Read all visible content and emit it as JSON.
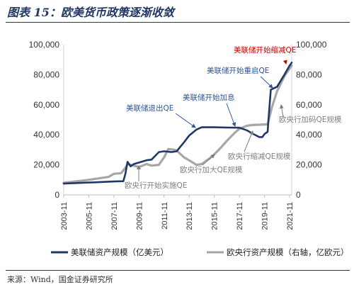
{
  "header": {
    "title": "图表 15：欧美货币政策逐渐收敛"
  },
  "footer": {
    "source": "来源：Wind，国金证券研究所"
  },
  "colors": {
    "fed": "#203864",
    "ecb": "#a6a6a6",
    "fed_annotation": "#2f5597",
    "highlight": "#c00000",
    "ecb_annotation": "#7f7f7f"
  },
  "chart_data": {
    "type": "line",
    "title": "",
    "xlabel": "",
    "ylabel": "",
    "ylabel_right": "",
    "x_range": [
      "2003-11",
      "2022-01"
    ],
    "x_ticks": [
      "2003-11",
      "2005-11",
      "2007-11",
      "2009-11",
      "2011-11",
      "2013-11",
      "2015-11",
      "2017-11",
      "2019-11",
      "2021-11"
    ],
    "ylim": [
      0,
      100000
    ],
    "ylim_right": [
      0,
      100000
    ],
    "y_ticks": [
      "0",
      "20,000",
      "40,000",
      "60,000",
      "80,000",
      "100,000"
    ],
    "y_ticks_right": [
      "0",
      "20,000",
      "40,000",
      "60,000",
      "80,000",
      "100,000"
    ],
    "grid": false,
    "legend_position": "bottom",
    "series": [
      {
        "name": "美联储资产规模（亿美元）",
        "axis": "left",
        "points": [
          [
            "2003-11",
            7500
          ],
          [
            "2005-11",
            8200
          ],
          [
            "2007-11",
            8900
          ],
          [
            "2008-08",
            9100
          ],
          [
            "2008-10",
            14000
          ],
          [
            "2008-12",
            22000
          ],
          [
            "2009-03",
            19000
          ],
          [
            "2009-06",
            20500
          ],
          [
            "2009-11",
            21500
          ],
          [
            "2010-06",
            23000
          ],
          [
            "2010-11",
            23500
          ],
          [
            "2011-06",
            28500
          ],
          [
            "2011-11",
            29000
          ],
          [
            "2012-06",
            28500
          ],
          [
            "2012-11",
            29000
          ],
          [
            "2013-06",
            35000
          ],
          [
            "2013-11",
            39500
          ],
          [
            "2014-06",
            43500
          ],
          [
            "2014-11",
            45000
          ],
          [
            "2015-11",
            45000
          ],
          [
            "2016-11",
            44800
          ],
          [
            "2017-11",
            44700
          ],
          [
            "2018-06",
            43000
          ],
          [
            "2018-11",
            41000
          ],
          [
            "2019-06",
            38500
          ],
          [
            "2019-09",
            38500
          ],
          [
            "2019-11",
            40500
          ],
          [
            "2020-02",
            42000
          ],
          [
            "2020-03",
            52000
          ],
          [
            "2020-05",
            70000
          ],
          [
            "2020-11",
            72000
          ],
          [
            "2021-06",
            80000
          ],
          [
            "2021-11",
            86000
          ],
          [
            "2022-01",
            88000
          ]
        ]
      },
      {
        "name": "欧央行资产规模（右轴，亿欧元）",
        "axis": "right",
        "points": [
          [
            "2003-11",
            8000
          ],
          [
            "2005-11",
            10000
          ],
          [
            "2007-06",
            12000
          ],
          [
            "2007-11",
            14000
          ],
          [
            "2008-06",
            14500
          ],
          [
            "2008-10",
            18000
          ],
          [
            "2008-12",
            20500
          ],
          [
            "2009-06",
            19500
          ],
          [
            "2009-11",
            18500
          ],
          [
            "2010-06",
            20500
          ],
          [
            "2010-11",
            19500
          ],
          [
            "2011-06",
            20000
          ],
          [
            "2011-11",
            25000
          ],
          [
            "2012-03",
            30500
          ],
          [
            "2012-09",
            30000
          ],
          [
            "2012-11",
            29500
          ],
          [
            "2013-06",
            25000
          ],
          [
            "2013-11",
            23000
          ],
          [
            "2014-06",
            20000
          ],
          [
            "2014-11",
            20500
          ],
          [
            "2015-06",
            24000
          ],
          [
            "2015-11",
            27000
          ],
          [
            "2016-06",
            32000
          ],
          [
            "2016-11",
            36000
          ],
          [
            "2017-06",
            41000
          ],
          [
            "2017-11",
            44000
          ],
          [
            "2018-06",
            46000
          ],
          [
            "2018-11",
            46500
          ],
          [
            "2019-06",
            46700
          ],
          [
            "2019-11",
            46900
          ],
          [
            "2020-02",
            47000
          ],
          [
            "2020-06",
            58000
          ],
          [
            "2020-11",
            69000
          ],
          [
            "2021-06",
            79000
          ],
          [
            "2021-11",
            84000
          ],
          [
            "2022-01",
            86000
          ]
        ]
      }
    ],
    "annotations": [
      {
        "text": "美联储开始缩减QE",
        "color": "highlight"
      },
      {
        "text": "美联储开始重启QE",
        "color": "fed_annotation"
      },
      {
        "text": "美联储开始加息",
        "color": "fed_annotation"
      },
      {
        "text": "美联储退出QE",
        "color": "fed_annotation"
      },
      {
        "text": "欧央行加码QE规模",
        "color": "ecb_annotation"
      },
      {
        "text": "欧央行缩减QE规模",
        "color": "ecb_annotation"
      },
      {
        "text": "欧央行加大QE规模",
        "color": "ecb_annotation"
      },
      {
        "text": "欧央行开始实施QE",
        "color": "ecb_annotation"
      }
    ]
  }
}
